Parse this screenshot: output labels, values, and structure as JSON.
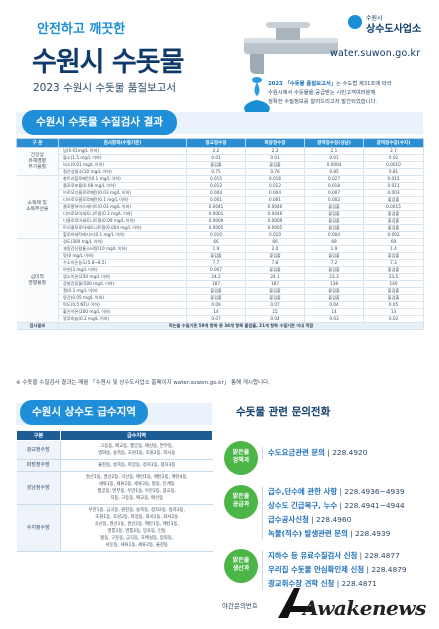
{
  "header": {
    "subtitle": "안전하고 깨끗한",
    "title": "수원시 수돗물",
    "year_title": "2023 수원시 수돗물 품질보고서",
    "logo_small": "수원시",
    "logo_name": "상수도사업소",
    "site_url": "water.suwon.go.kr",
    "intro_lead": "2023 「수돗물 품질보고서」",
    "intro_lines": [
      "는 수도법 제31조에 따라",
      "수원시에서 수돗물을 공급받는 시민고객여러분께",
      "정확한 수질정보를 알려드리고자 발간되었습니다."
    ]
  },
  "quality": {
    "section_title": "수원시 수돗물 수질검사 결과",
    "columns": [
      "구 분",
      "검사항목(수질기준)",
      "광교정수장",
      "파장정수장",
      "광역정수장(성남)",
      "광역정수장(수지)"
    ],
    "categories": [
      {
        "label": "건강상\n유해영향\n무기물질",
        "rows": [
          [
            "납(0.01mg/L 이하)",
            "2.2",
            "2.3",
            "2.1",
            "2.7"
          ],
          [
            "불소(1.5 mg/L 이하)",
            "0.01",
            "0.01",
            "0.01",
            "0.02"
          ],
          [
            "비소(0.01 mg/L 이하)",
            "불검출",
            "불검출",
            "0.0004",
            "0.0010"
          ],
          [
            "질산성질소(10 mg/L 이하)",
            "0.75",
            "0.76",
            "0.85",
            "0.81"
          ]
        ]
      },
      {
        "label": "소독제 및\n소독부산물",
        "rows": [
          [
            "총트리할로메탄(0.1 mg/L 이하)",
            "0.015",
            "0.016",
            "0.027",
            "0.015"
          ],
          [
            "클로로포름(0.08 mg/L 이하)",
            "0.012",
            "0.012",
            "0.018",
            "0.011"
          ],
          [
            "브로모디클로로메탄(0.03 mg/L 이하)",
            "0.004",
            "0.004",
            "0.007",
            "0.003"
          ],
          [
            "디브로모클로로메탄(0.1 mg/L 이하)",
            "0.001",
            "0.001",
            "0.002",
            "불검출"
          ],
          [
            "클로랄하이드레이트(0.03 mg/L 이하)",
            "0.0041",
            "0.0040",
            "불검출",
            "0.0015"
          ],
          [
            "디브로모아세토니트릴(0.1 mg/L 이하)",
            "0.0001",
            "0.0046",
            "불검출",
            "불검출"
          ],
          [
            "디클로로아세토니트릴(0.09 mg/L 이하)",
            "0.0009",
            "0.0009",
            "불검출",
            "불검출"
          ],
          [
            "트리클로로아세토니트릴(0.004 mg/L 이하)",
            "0.0005",
            "0.0005",
            "불검출",
            "불검출"
          ],
          [
            "할로아세틱에시드(0.1 mg/L 이하)",
            "0.010",
            "0.010",
            "0.004",
            "0.002"
          ]
        ]
      },
      {
        "label": "심미적\n영향물질",
        "rows": [
          [
            "경도(300 mg/L 이하)",
            "66",
            "66",
            "69",
            "69"
          ],
          [
            "과망간산칼륨소비량(10 mg/L 이하)",
            "1.9",
            "2.0",
            "1.9",
            "1.4"
          ],
          [
            "맛(0 mg/L 이하)",
            "불검출",
            "불검출",
            "불검출",
            "불검출"
          ],
          [
            "수소이온농도(5.8~8.5)",
            "7.7",
            "7.8",
            "7.2",
            "7.3"
          ],
          [
            "아연(3 mg/L 이하)",
            "0.007",
            "불검출",
            "불검출",
            "불검출"
          ],
          [
            "염소이온(250 mg/L 이하)",
            "24.2",
            "24.1",
            "23.3",
            "23.5"
          ],
          [
            "증발잔류물(500 mg/L 이하)",
            "187",
            "187",
            "138",
            "140"
          ],
          [
            "철(0.3 mg/L 이하)",
            "불검출",
            "불검출",
            "불검출",
            "불검출"
          ],
          [
            "망간(0.05 mg/L 이하)",
            "불검출",
            "불검출",
            "불검출",
            "불검출"
          ],
          [
            "탁도(0.5 NTU 이하)",
            "0.09",
            "0.07",
            "0.04",
            "0.05"
          ],
          [
            "황산이온(200 mg/L 이하)",
            "14",
            "15",
            "14",
            "13"
          ],
          [
            "알루미늄(0.2 mg/L 이하)",
            "0.07",
            "0.04",
            "0.03",
            "0.02"
          ]
        ]
      }
    ],
    "footer_label": "검사결과",
    "footer_text": "먹는물 수질기준 59개 항목 중 38개 항목 불검출, 21개 항목 수질기준 이내 적합",
    "note": "※ 수돗물 수질검사 결과는 매월 「수원시 및 상수도사업소 홈페이지 water.suwon.go.kr」 통해 게시합니다."
  },
  "supply": {
    "section_title": "수원시 상수도 급수지역",
    "columns": [
      "구분",
      "급수지역"
    ],
    "rows": [
      {
        "name": "광교정수장",
        "areas": [
          "고등동, 매교동, 행궁동, 매산동, 연무동,",
          "영화동, 송죽동, 조원1동, 조원2동, 파사동"
        ]
      },
      {
        "name": "파장정수장",
        "areas": [
          "율천동, 송죽동, 파장동, 정자1동, 정자3동"
        ]
      },
      {
        "name": "성남정수장",
        "areas": [
          "권선1동, 권선2동, 곡선동, 매탄1동, 매탄2동, 매탄4동,",
          "세류1동, 세류2동, 세류3동, 평동, 인계동",
          "행궁동, 연무동, 우만1동, 우만2동, 광교동,",
          "지동, 고등동, 매교동, 매산동"
        ]
      },
      {
        "name": "수지정수장",
        "areas": [
          "우만1동, 금곡동, 원천동, 송죽동, 정자2동, 정자3동,",
          "조원1동, 조원2동, 파장동, 화서1동, 화서2동",
          "곡선동, 권선1동, 권선2동, 매탄1동, 매탄3동,",
          "영통1동, 영통2동, 망포동, 인동",
          "평동, 구운동, 금곡동, 호매실동, 입북동,",
          "서둔동, 세류1동, 세류2동, 율천동"
        ]
      }
    ]
  },
  "contact": {
    "section_title": "수돗물 관련 문의전화",
    "groups": [
      {
        "circle": "맑은물\n정책과",
        "lines": [
          {
            "label": "수도요금관련 문의",
            "num": "228.4920"
          }
        ]
      },
      {
        "circle": "맑은물\n공급과",
        "lines": [
          {
            "label": "급수,단수에 관한 사항",
            "num": "228.4936~4939"
          },
          {
            "label": "상수도 긴급복구, 누수",
            "num": "228.4941~4944"
          },
          {
            "label": "급수공사신청",
            "num": "228.4960"
          },
          {
            "label": "녹물(적수) 발생관련 문의",
            "num": "228.4939"
          }
        ]
      },
      {
        "circle": "맑은물\n생산과",
        "lines": [
          {
            "label": "지하수 등 유료수질검사 신청",
            "num": "228.4877"
          },
          {
            "label": "우리집 수돗물 안심확인제 신청",
            "num": "228.4879"
          },
          {
            "label": "광교취수장 견학 신청",
            "num": "228.4871"
          }
        ]
      }
    ],
    "night_label": "야간문의번호"
  },
  "watermark": "Awakenews",
  "colors": {
    "accent": "#1b8fd6",
    "navy": "#0d3a6b",
    "green": "#4bb547"
  }
}
